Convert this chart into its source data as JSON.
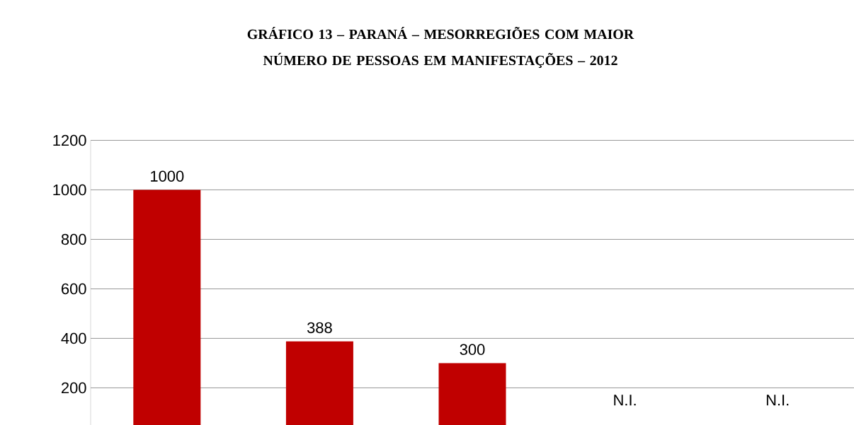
{
  "chart_data": {
    "type": "bar",
    "title": "GRÁFICO 13 – PARANÁ – MESORREGIÕES COM MAIOR NÚMERO DE PESSOAS EM MANIFESTAÇÕES – 2012",
    "categories": [
      null,
      null,
      null,
      null,
      null
    ],
    "values": [
      1000,
      388,
      300,
      null,
      null
    ],
    "value_labels": [
      "1000",
      "388",
      "300",
      "N.I.",
      "N.I."
    ],
    "color": "#c00000",
    "ylim": [
      50,
      1200
    ],
    "yticks": [
      200,
      400,
      600,
      800,
      1000,
      1200
    ],
    "grid": "y"
  }
}
